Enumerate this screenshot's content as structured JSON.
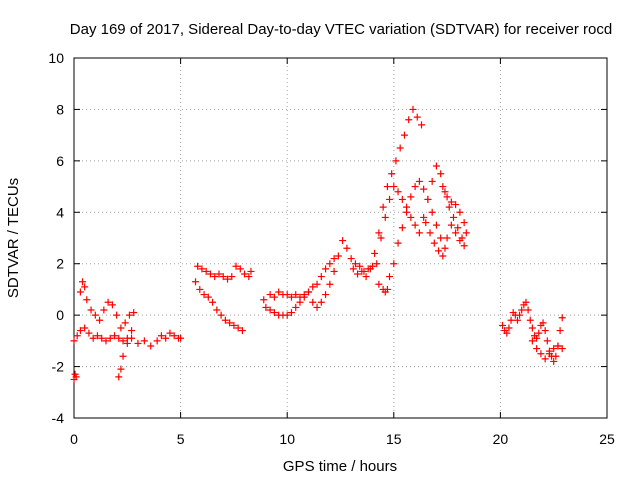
{
  "chart_data": {
    "type": "scatter",
    "title": "Day 169 of 2017, Sidereal Day-to-day VTEC variation (SDTVAR) for receiver rocd",
    "xlabel": "GPS time / hours",
    "ylabel": "SDTVAR / TECUs",
    "xlim": [
      0,
      25
    ],
    "ylim": [
      -4,
      10
    ],
    "xticks": [
      0,
      5,
      10,
      15,
      20,
      25
    ],
    "yticks": [
      -4,
      -2,
      0,
      2,
      4,
      6,
      8,
      10
    ],
    "grid": true,
    "marker": "+",
    "color": "#ff0000",
    "series": [
      {
        "name": "segment-1",
        "points": [
          [
            0.0,
            -2.5
          ],
          [
            0.05,
            -2.3
          ],
          [
            0.1,
            -2.4
          ],
          [
            0.0,
            -1.0
          ],
          [
            0.15,
            -0.8
          ],
          [
            0.3,
            -0.6
          ],
          [
            0.5,
            -0.5
          ],
          [
            0.7,
            -0.7
          ],
          [
            0.9,
            -0.9
          ],
          [
            1.1,
            -0.8
          ],
          [
            1.3,
            -0.9
          ],
          [
            1.5,
            -1.0
          ],
          [
            1.7,
            -0.9
          ],
          [
            1.9,
            -0.8
          ],
          [
            2.1,
            -0.9
          ],
          [
            2.3,
            -1.0
          ],
          [
            2.5,
            -0.9
          ],
          [
            2.7,
            -0.6
          ]
        ]
      },
      {
        "name": "segment-2",
        "points": [
          [
            0.3,
            0.9
          ],
          [
            0.4,
            1.3
          ],
          [
            0.5,
            1.1
          ],
          [
            0.6,
            0.6
          ],
          [
            0.8,
            0.2
          ],
          [
            1.0,
            0.0
          ],
          [
            1.2,
            -0.2
          ],
          [
            1.4,
            0.2
          ],
          [
            1.6,
            0.5
          ],
          [
            1.8,
            0.4
          ],
          [
            2.0,
            0.0
          ],
          [
            2.2,
            -0.5
          ],
          [
            2.4,
            -0.3
          ],
          [
            2.6,
            0.0
          ],
          [
            2.8,
            0.1
          ]
        ]
      },
      {
        "name": "segment-3",
        "points": [
          [
            2.1,
            -2.4
          ],
          [
            2.2,
            -2.1
          ],
          [
            2.3,
            -1.6
          ],
          [
            2.5,
            -1.1
          ],
          [
            2.7,
            -0.9
          ],
          [
            3.0,
            -1.1
          ],
          [
            3.3,
            -1.0
          ],
          [
            3.6,
            -1.2
          ],
          [
            3.9,
            -1.0
          ],
          [
            4.1,
            -0.8
          ],
          [
            4.3,
            -0.9
          ],
          [
            4.5,
            -0.7
          ],
          [
            4.7,
            -0.8
          ],
          [
            4.9,
            -0.9
          ],
          [
            5.0,
            -0.9
          ]
        ]
      },
      {
        "name": "segment-4",
        "points": [
          [
            5.7,
            1.3
          ],
          [
            5.9,
            1.0
          ],
          [
            6.1,
            0.8
          ],
          [
            6.3,
            0.7
          ],
          [
            6.5,
            0.5
          ],
          [
            6.7,
            0.2
          ],
          [
            6.9,
            0.0
          ],
          [
            7.1,
            -0.2
          ],
          [
            7.3,
            -0.3
          ],
          [
            7.5,
            -0.4
          ],
          [
            7.7,
            -0.5
          ],
          [
            7.9,
            -0.6
          ]
        ]
      },
      {
        "name": "segment-5",
        "points": [
          [
            5.8,
            1.9
          ],
          [
            6.0,
            1.8
          ],
          [
            6.2,
            1.7
          ],
          [
            6.4,
            1.6
          ],
          [
            6.6,
            1.5
          ],
          [
            6.8,
            1.6
          ],
          [
            7.0,
            1.5
          ],
          [
            7.2,
            1.4
          ],
          [
            7.4,
            1.5
          ],
          [
            7.6,
            1.9
          ],
          [
            7.8,
            1.8
          ],
          [
            8.0,
            1.6
          ],
          [
            8.2,
            1.5
          ],
          [
            8.3,
            1.7
          ]
        ]
      },
      {
        "name": "segment-6",
        "points": [
          [
            8.9,
            0.6
          ],
          [
            9.0,
            0.3
          ],
          [
            9.2,
            0.2
          ],
          [
            9.4,
            0.1
          ],
          [
            9.6,
            0.0
          ],
          [
            9.8,
            0.0
          ],
          [
            10.0,
            0.0
          ],
          [
            10.2,
            0.1
          ],
          [
            10.4,
            0.3
          ],
          [
            10.6,
            0.5
          ],
          [
            10.8,
            0.7
          ],
          [
            11.0,
            0.9
          ],
          [
            11.2,
            1.1
          ],
          [
            11.4,
            1.2
          ],
          [
            11.6,
            1.5
          ],
          [
            11.8,
            1.8
          ],
          [
            12.0,
            2.0
          ],
          [
            12.2,
            2.2
          ]
        ]
      },
      {
        "name": "segment-7",
        "points": [
          [
            9.2,
            0.8
          ],
          [
            9.4,
            0.7
          ],
          [
            9.6,
            0.9
          ],
          [
            9.8,
            0.8
          ],
          [
            10.0,
            0.8
          ],
          [
            10.2,
            0.7
          ],
          [
            10.4,
            0.8
          ],
          [
            10.6,
            0.7
          ],
          [
            10.8,
            0.8
          ],
          [
            11.0,
            0.9
          ],
          [
            11.2,
            0.5
          ],
          [
            11.4,
            0.3
          ],
          [
            11.6,
            0.5
          ],
          [
            11.8,
            0.8
          ],
          [
            12.0,
            1.2
          ],
          [
            12.2,
            1.7
          ],
          [
            12.4,
            2.3
          ],
          [
            12.6,
            2.9
          ],
          [
            12.8,
            2.6
          ],
          [
            13.0,
            2.2
          ],
          [
            13.2,
            2.0
          ],
          [
            13.4,
            1.9
          ],
          [
            13.6,
            1.7
          ],
          [
            13.8,
            1.8
          ],
          [
            14.0,
            1.9
          ],
          [
            14.2,
            2.0
          ]
        ]
      },
      {
        "name": "segment-8",
        "points": [
          [
            13.1,
            1.8
          ],
          [
            13.3,
            1.6
          ],
          [
            13.5,
            1.7
          ],
          [
            13.7,
            1.5
          ],
          [
            13.9,
            1.8
          ],
          [
            14.1,
            2.4
          ],
          [
            14.3,
            3.2
          ],
          [
            14.5,
            4.2
          ],
          [
            14.7,
            5.0
          ],
          [
            14.9,
            5.5
          ],
          [
            15.1,
            6.0
          ],
          [
            15.3,
            6.5
          ],
          [
            15.5,
            7.0
          ],
          [
            15.7,
            7.6
          ],
          [
            15.9,
            8.0
          ],
          [
            16.1,
            7.7
          ],
          [
            16.3,
            7.4
          ]
        ]
      },
      {
        "name": "segment-9",
        "points": [
          [
            14.3,
            1.2
          ],
          [
            14.5,
            1.0
          ],
          [
            14.6,
            0.9
          ],
          [
            14.7,
            1.0
          ],
          [
            14.8,
            1.5
          ],
          [
            15.0,
            2.0
          ],
          [
            15.2,
            2.8
          ],
          [
            15.4,
            3.4
          ],
          [
            15.6,
            4.0
          ],
          [
            15.8,
            4.6
          ],
          [
            16.0,
            5.0
          ],
          [
            16.2,
            5.2
          ],
          [
            16.4,
            4.9
          ],
          [
            16.6,
            4.5
          ],
          [
            16.8,
            4.0
          ],
          [
            17.0,
            3.5
          ],
          [
            17.2,
            3.0
          ],
          [
            17.4,
            2.6
          ]
        ]
      },
      {
        "name": "segment-10",
        "points": [
          [
            14.4,
            3.0
          ],
          [
            14.6,
            3.8
          ],
          [
            14.8,
            4.5
          ],
          [
            15.0,
            5.0
          ],
          [
            15.2,
            4.8
          ],
          [
            15.4,
            4.5
          ],
          [
            15.6,
            4.2
          ],
          [
            15.8,
            3.8
          ],
          [
            16.0,
            3.5
          ],
          [
            16.2,
            3.2
          ],
          [
            16.4,
            3.8
          ],
          [
            16.6,
            4.5
          ],
          [
            16.8,
            5.2
          ],
          [
            17.0,
            5.8
          ],
          [
            17.2,
            5.5
          ],
          [
            17.4,
            4.8
          ],
          [
            17.6,
            4.2
          ],
          [
            17.8,
            3.8
          ],
          [
            18.0,
            3.4
          ],
          [
            18.2,
            3.0
          ]
        ]
      },
      {
        "name": "segment-11",
        "points": [
          [
            16.5,
            3.6
          ],
          [
            16.7,
            3.2
          ],
          [
            16.9,
            2.8
          ],
          [
            17.1,
            2.5
          ],
          [
            17.3,
            2.3
          ],
          [
            17.5,
            3.0
          ],
          [
            17.7,
            3.5
          ],
          [
            17.9,
            3.2
          ],
          [
            18.1,
            2.9
          ],
          [
            18.3,
            2.7
          ]
        ]
      },
      {
        "name": "segment-12",
        "points": [
          [
            17.3,
            5.0
          ],
          [
            17.5,
            4.6
          ],
          [
            17.7,
            4.4
          ],
          [
            17.9,
            4.3
          ],
          [
            18.1,
            4.0
          ],
          [
            18.3,
            3.6
          ],
          [
            18.4,
            3.2
          ]
        ]
      },
      {
        "name": "segment-13",
        "points": [
          [
            20.1,
            -0.4
          ],
          [
            20.2,
            -0.6
          ],
          [
            20.3,
            -0.7
          ],
          [
            20.4,
            -0.5
          ],
          [
            20.5,
            -0.2
          ],
          [
            20.6,
            0.1
          ],
          [
            20.7,
            0.0
          ],
          [
            20.8,
            -0.2
          ],
          [
            20.9,
            0.0
          ],
          [
            21.0,
            0.2
          ],
          [
            21.1,
            0.4
          ],
          [
            21.2,
            0.5
          ],
          [
            21.3,
            0.2
          ],
          [
            21.4,
            -0.2
          ],
          [
            21.5,
            -0.5
          ],
          [
            21.6,
            -0.8
          ],
          [
            21.7,
            -0.9
          ],
          [
            21.8,
            -0.7
          ],
          [
            21.9,
            -0.4
          ],
          [
            22.0,
            -0.3
          ],
          [
            22.1,
            -0.6
          ],
          [
            22.2,
            -1.0
          ],
          [
            22.3,
            -1.4
          ],
          [
            22.4,
            -1.6
          ],
          [
            22.5,
            -1.8
          ],
          [
            22.6,
            -1.6
          ],
          [
            22.7,
            -1.2
          ],
          [
            22.8,
            -0.6
          ],
          [
            22.9,
            -0.1
          ]
        ]
      },
      {
        "name": "segment-14",
        "points": [
          [
            21.5,
            -1.0
          ],
          [
            21.7,
            -1.3
          ],
          [
            21.9,
            -1.5
          ],
          [
            22.1,
            -1.7
          ],
          [
            22.3,
            -1.5
          ],
          [
            22.5,
            -1.3
          ],
          [
            22.7,
            -1.2
          ],
          [
            22.9,
            -1.3
          ]
        ]
      }
    ]
  }
}
